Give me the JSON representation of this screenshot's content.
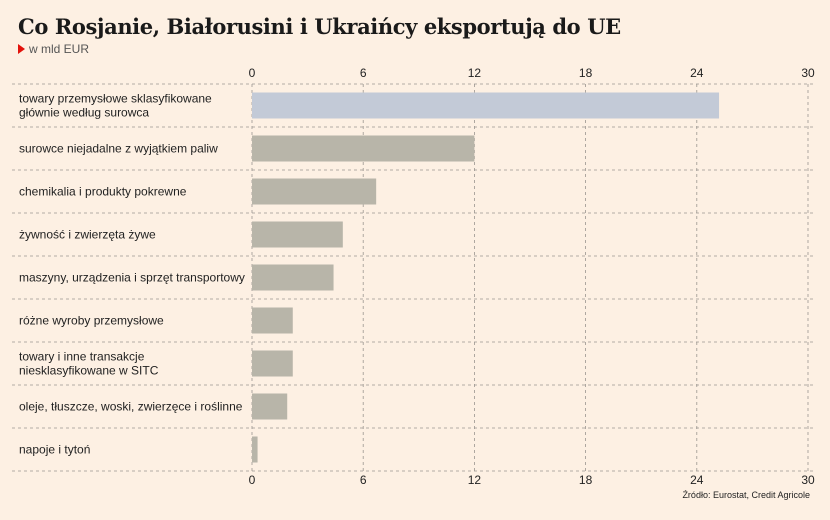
{
  "header": {
    "title": "Co Rosjanie, Białorusini i Ukraińcy eksportują do UE",
    "subtitle": "w mld EUR"
  },
  "footer": {
    "source": "Źródło: Eurostat, Credit Agricole"
  },
  "colors": {
    "highlight": "#c3cad7",
    "bar": "#b8b5a9",
    "grid": "#9a9590",
    "text": "#222222",
    "accent": "#e3120b"
  },
  "chart_data": {
    "type": "bar",
    "orientation": "horizontal",
    "title": "Co Rosjanie, Białorusini i Ukraińcy eksportują do UE",
    "unit": "w mld EUR",
    "xlim": [
      0,
      30
    ],
    "ticks": [
      0,
      6,
      12,
      18,
      24,
      30
    ],
    "grid": true,
    "categories": [
      [
        "towary przemysłowe sklasyfikowane",
        "głównie według surowca"
      ],
      [
        "surowce niejadalne z wyjątkiem paliw"
      ],
      [
        "chemikalia i produkty pokrewne"
      ],
      [
        "żywność i zwierzęta żywe"
      ],
      [
        "maszyny, urządzenia i sprzęt transportowy"
      ],
      [
        "różne wyroby przemysłowe"
      ],
      [
        "towary i inne transakcje",
        "niesklasyfikowane w SITC"
      ],
      [
        "oleje, tłuszcze, woski, zwierzęce i roślinne"
      ],
      [
        "napoje i tytoń"
      ]
    ],
    "values": [
      25.2,
      12.0,
      6.7,
      4.9,
      4.4,
      2.2,
      2.2,
      1.9,
      0.3
    ],
    "highlight_index": 0
  }
}
